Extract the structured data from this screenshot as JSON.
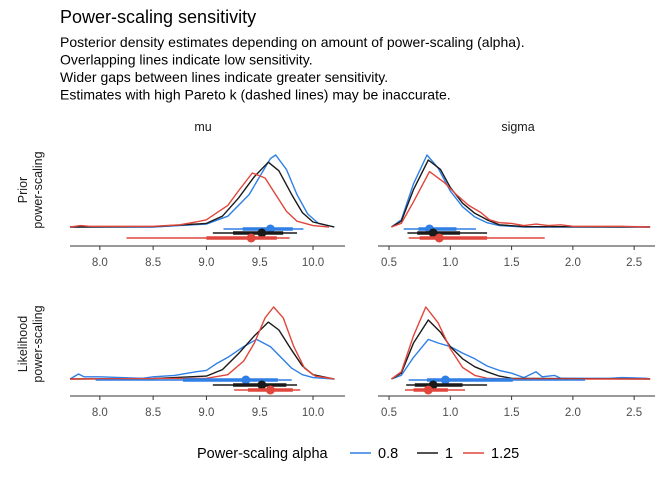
{
  "chart_data": {
    "type": "line",
    "title": "Power-scaling sensitivity",
    "subtitle": [
      "Posterior density estimates depending on amount of power-scaling (alpha).",
      "Overlapping lines indicate low sensitivity.",
      "Wider gaps between lines indicate greater sensitivity.",
      "Estimates with high Pareto k (dashed lines) may be inaccurate."
    ],
    "legend": {
      "title": "Power-scaling alpha",
      "placement": "bottom",
      "entries": [
        {
          "label": "0.8",
          "color": "#2e7fe6"
        },
        {
          "label": "1",
          "color": "#1a1a1a"
        },
        {
          "label": "1.25",
          "color": "#e0463b"
        }
      ]
    },
    "columns": [
      {
        "label": "mu",
        "xlim": [
          7.72,
          10.3
        ],
        "ticks": [
          "8.0",
          "8.5",
          "9.0",
          "9.5",
          "10.0"
        ],
        "tick_values": [
          8.0,
          8.5,
          9.0,
          9.5,
          10.0
        ]
      },
      {
        "label": "sigma",
        "xlim": [
          0.41,
          2.67
        ],
        "ticks": [
          "0.5",
          "1.0",
          "1.5",
          "2.0",
          "2.5"
        ],
        "tick_values": [
          0.5,
          1.0,
          1.5,
          2.0,
          2.5
        ]
      }
    ],
    "rows": [
      {
        "label": [
          "Prior",
          "power-scaling"
        ]
      },
      {
        "label": [
          "Likelihood",
          "power-scaling"
        ]
      }
    ],
    "y_axis": "relative density (no ticks)",
    "grid": false,
    "panels": [
      {
        "row": 0,
        "col": 0,
        "series": [
          {
            "alpha": "0.8",
            "density": [
              [
                7.72,
                0
              ],
              [
                8.5,
                0
              ],
              [
                9.0,
                0.04
              ],
              [
                9.2,
                0.15
              ],
              [
                9.4,
                0.45
              ],
              [
                9.5,
                0.7
              ],
              [
                9.6,
                0.95
              ],
              [
                9.65,
                1.0
              ],
              [
                9.75,
                0.8
              ],
              [
                9.85,
                0.45
              ],
              [
                9.95,
                0.18
              ],
              [
                10.05,
                0.05
              ],
              [
                10.2,
                0
              ]
            ],
            "interval": {
              "point": 9.6,
              "inner": [
                9.34,
                9.81
              ],
              "outer": [
                9.16,
                9.91
              ]
            }
          },
          {
            "alpha": "1",
            "density": [
              [
                7.72,
                0
              ],
              [
                8.5,
                0.005
              ],
              [
                9.0,
                0.05
              ],
              [
                9.15,
                0.15
              ],
              [
                9.3,
                0.4
              ],
              [
                9.45,
                0.7
              ],
              [
                9.58,
                0.9
              ],
              [
                9.68,
                0.78
              ],
              [
                9.8,
                0.45
              ],
              [
                9.9,
                0.2
              ],
              [
                10.0,
                0.07
              ],
              [
                10.2,
                0
              ]
            ],
            "interval": {
              "point": 9.52,
              "inner": [
                9.25,
                9.72
              ],
              "outer": [
                9.06,
                9.85
              ]
            }
          },
          {
            "alpha": "1.25",
            "density": [
              [
                7.72,
                0
              ],
              [
                7.82,
                0.02
              ],
              [
                7.9,
                0.01
              ],
              [
                8.0,
                0.01
              ],
              [
                8.5,
                0.01
              ],
              [
                8.75,
                0.03
              ],
              [
                8.9,
                0.07
              ],
              [
                9.0,
                0.1
              ],
              [
                9.1,
                0.2
              ],
              [
                9.2,
                0.3
              ],
              [
                9.3,
                0.5
              ],
              [
                9.43,
                0.75
              ],
              [
                9.55,
                0.68
              ],
              [
                9.65,
                0.45
              ],
              [
                9.75,
                0.22
              ],
              [
                9.85,
                0.08
              ],
              [
                10.0,
                0.02
              ],
              [
                10.15,
                0
              ]
            ],
            "interval": {
              "point": 9.42,
              "inner": [
                9.0,
                9.66
              ],
              "outer": [
                8.25,
                9.78
              ]
            }
          }
        ]
      },
      {
        "row": 0,
        "col": 1,
        "series": [
          {
            "alpha": "0.8",
            "density": [
              [
                0.52,
                0
              ],
              [
                0.6,
                0.1
              ],
              [
                0.7,
                0.6
              ],
              [
                0.81,
                1.0
              ],
              [
                0.9,
                0.82
              ],
              [
                1.0,
                0.5
              ],
              [
                1.1,
                0.28
              ],
              [
                1.2,
                0.14
              ],
              [
                1.3,
                0.06
              ],
              [
                1.4,
                0.02
              ],
              [
                1.6,
                0
              ],
              [
                2.63,
                0
              ]
            ],
            "interval": {
              "point": 0.83,
              "inner": [
                0.74,
                1.05
              ],
              "outer": [
                0.62,
                1.21
              ]
            }
          },
          {
            "alpha": "1",
            "density": [
              [
                0.52,
                0
              ],
              [
                0.6,
                0.08
              ],
              [
                0.7,
                0.52
              ],
              [
                0.82,
                0.93
              ],
              [
                0.92,
                0.8
              ],
              [
                1.0,
                0.55
              ],
              [
                1.1,
                0.33
              ],
              [
                1.2,
                0.19
              ],
              [
                1.3,
                0.1
              ],
              [
                1.4,
                0.03
              ],
              [
                1.6,
                0.005
              ],
              [
                2.63,
                0
              ]
            ],
            "interval": {
              "point": 0.86,
              "inner": [
                0.73,
                1.08
              ],
              "outer": [
                0.65,
                1.3
              ]
            }
          },
          {
            "alpha": "1.25",
            "density": [
              [
                0.52,
                0
              ],
              [
                0.6,
                0.05
              ],
              [
                0.7,
                0.35
              ],
              [
                0.83,
                0.77
              ],
              [
                0.95,
                0.62
              ],
              [
                1.05,
                0.45
              ],
              [
                1.15,
                0.3
              ],
              [
                1.25,
                0.2
              ],
              [
                1.32,
                0.1
              ],
              [
                1.4,
                0.06
              ],
              [
                1.5,
                0.05
              ],
              [
                1.6,
                0.02
              ],
              [
                1.7,
                0.04
              ],
              [
                1.8,
                0.02
              ],
              [
                1.9,
                0.03
              ],
              [
                2.0,
                0.01
              ],
              [
                2.4,
                0.01
              ],
              [
                2.63,
                0
              ]
            ],
            "interval": {
              "point": 0.91,
              "inner": [
                0.75,
                1.3
              ],
              "outer": [
                0.66,
                1.77
              ]
            }
          }
        ]
      },
      {
        "row": 1,
        "col": 0,
        "series": [
          {
            "alpha": "0.8",
            "density": [
              [
                7.72,
                0
              ],
              [
                7.8,
                0.07
              ],
              [
                7.85,
                0.03
              ],
              [
                8.0,
                0.03
              ],
              [
                8.2,
                0.02
              ],
              [
                8.4,
                0.01
              ],
              [
                8.5,
                0.03
              ],
              [
                8.7,
                0.05
              ],
              [
                8.9,
                0.1
              ],
              [
                9.0,
                0.12
              ],
              [
                9.1,
                0.22
              ],
              [
                9.2,
                0.3
              ],
              [
                9.35,
                0.45
              ],
              [
                9.47,
                0.55
              ],
              [
                9.6,
                0.45
              ],
              [
                9.7,
                0.3
              ],
              [
                9.8,
                0.15
              ],
              [
                9.9,
                0.06
              ],
              [
                10.0,
                0.02
              ],
              [
                10.2,
                0
              ]
            ],
            "interval": {
              "point": 9.37,
              "inner": [
                8.78,
                9.67
              ],
              "outer": [
                7.96,
                9.8
              ]
            }
          },
          {
            "alpha": "1",
            "density": [
              [
                7.72,
                0
              ],
              [
                8.5,
                0.005
              ],
              [
                9.0,
                0.04
              ],
              [
                9.15,
                0.13
              ],
              [
                9.3,
                0.35
              ],
              [
                9.45,
                0.6
              ],
              [
                9.58,
                0.79
              ],
              [
                9.68,
                0.68
              ],
              [
                9.8,
                0.4
              ],
              [
                9.9,
                0.18
              ],
              [
                10.0,
                0.06
              ],
              [
                10.2,
                0
              ]
            ],
            "interval": {
              "point": 9.52,
              "inner": [
                9.25,
                9.75
              ],
              "outer": [
                9.06,
                9.85
              ]
            }
          },
          {
            "alpha": "1.25",
            "density": [
              [
                7.72,
                0
              ],
              [
                9.0,
                0.01
              ],
              [
                9.2,
                0.06
              ],
              [
                9.35,
                0.25
              ],
              [
                9.45,
                0.5
              ],
              [
                9.55,
                0.85
              ],
              [
                9.63,
                1.0
              ],
              [
                9.72,
                0.85
              ],
              [
                9.82,
                0.45
              ],
              [
                9.92,
                0.15
              ],
              [
                10.02,
                0.04
              ],
              [
                10.2,
                0
              ]
            ],
            "interval": {
              "point": 9.6,
              "inner": [
                9.39,
                9.81
              ],
              "outer": [
                9.26,
                9.88
              ]
            }
          }
        ]
      },
      {
        "row": 1,
        "col": 1,
        "series": [
          {
            "alpha": "0.8",
            "density": [
              [
                0.52,
                0
              ],
              [
                0.6,
                0.05
              ],
              [
                0.7,
                0.3
              ],
              [
                0.82,
                0.55
              ],
              [
                0.9,
                0.5
              ],
              [
                1.0,
                0.45
              ],
              [
                1.1,
                0.36
              ],
              [
                1.2,
                0.28
              ],
              [
                1.3,
                0.18
              ],
              [
                1.4,
                0.12
              ],
              [
                1.5,
                0.08
              ],
              [
                1.6,
                0.02
              ],
              [
                1.7,
                0.1
              ],
              [
                1.75,
                0.03
              ],
              [
                1.85,
                0.05
              ],
              [
                1.9,
                0.01
              ],
              [
                2.1,
                0.01
              ],
              [
                2.3,
                0.01
              ],
              [
                2.4,
                0.02
              ],
              [
                2.6,
                0.01
              ],
              [
                2.63,
                0
              ]
            ],
            "interval": {
              "point": 0.96,
              "inner": [
                0.81,
                1.51
              ],
              "outer": [
                0.66,
                2.1
              ]
            }
          },
          {
            "alpha": "1",
            "density": [
              [
                0.52,
                0
              ],
              [
                0.6,
                0.08
              ],
              [
                0.7,
                0.5
              ],
              [
                0.82,
                0.82
              ],
              [
                0.92,
                0.65
              ],
              [
                1.0,
                0.45
              ],
              [
                1.1,
                0.28
              ],
              [
                1.2,
                0.17
              ],
              [
                1.3,
                0.1
              ],
              [
                1.4,
                0.04
              ],
              [
                1.5,
                0.01
              ],
              [
                2.63,
                0
              ]
            ],
            "interval": {
              "point": 0.86,
              "inner": [
                0.71,
                1.1
              ],
              "outer": [
                0.64,
                1.3
              ]
            }
          },
          {
            "alpha": "1.25",
            "density": [
              [
                0.52,
                0
              ],
              [
                0.6,
                0.1
              ],
              [
                0.7,
                0.6
              ],
              [
                0.8,
                1.0
              ],
              [
                0.9,
                0.78
              ],
              [
                1.0,
                0.42
              ],
              [
                1.1,
                0.16
              ],
              [
                1.2,
                0.05
              ],
              [
                1.3,
                0.01
              ],
              [
                1.5,
                0
              ],
              [
                2.63,
                0
              ]
            ],
            "interval": {
              "point": 0.82,
              "inner": [
                0.7,
                0.98
              ],
              "outer": [
                0.63,
                1.12
              ]
            }
          }
        ]
      }
    ]
  }
}
